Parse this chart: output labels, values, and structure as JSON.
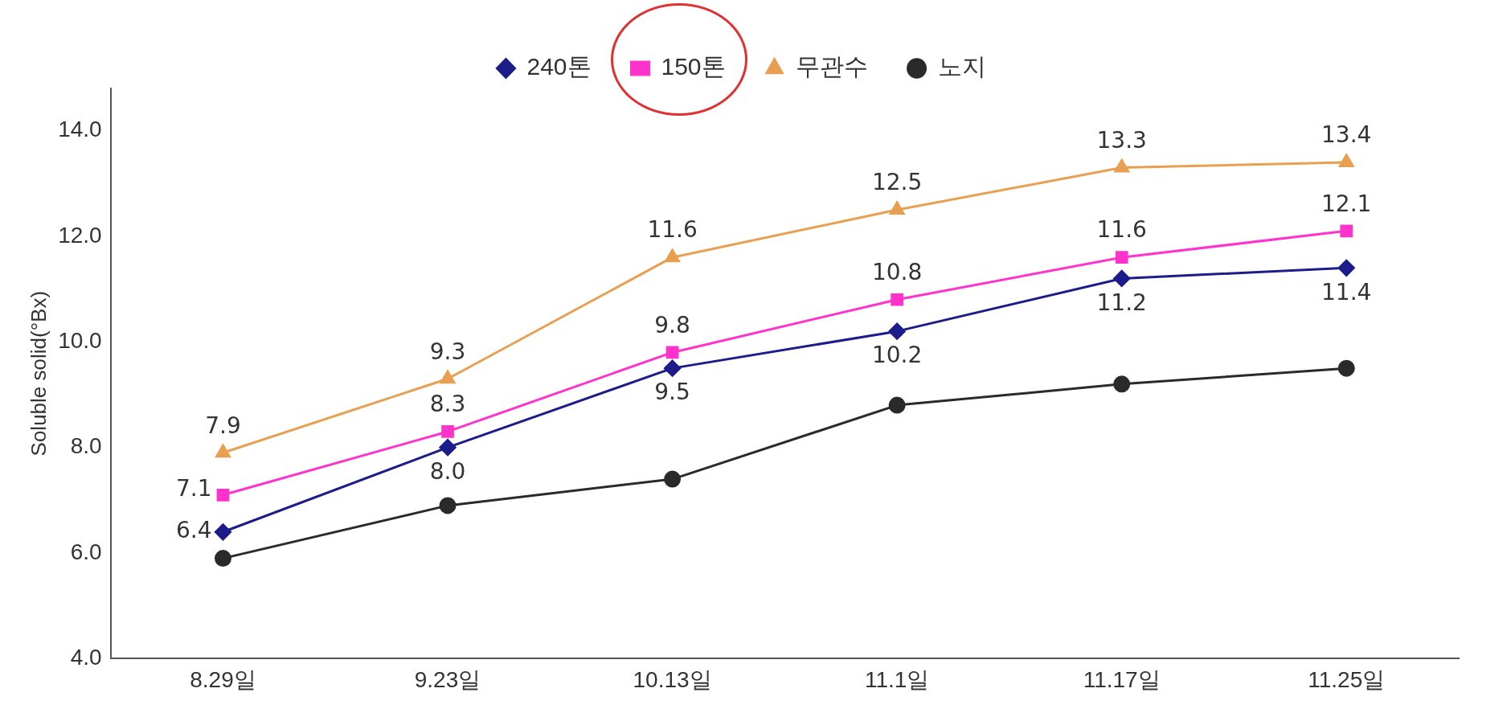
{
  "chart_data": {
    "type": "line",
    "ylabel": "Soluble solid(°Bx)",
    "categories": [
      "8.29일",
      "9.23일",
      "10.13일",
      "11.1일",
      "11.17일",
      "11.25일"
    ],
    "series": [
      {
        "name": "240톤",
        "color": "#1c1c8a",
        "marker": "diamond",
        "values": [
          6.4,
          8.0,
          9.5,
          10.2,
          11.2,
          11.4
        ],
        "value_labels": [
          "6.4",
          "8.0",
          "9.5",
          "10.2",
          "11.2",
          "11.4"
        ]
      },
      {
        "name": "150톤",
        "color": "#ff33cc",
        "marker": "square",
        "values": [
          7.1,
          8.3,
          9.8,
          10.8,
          11.6,
          12.1
        ],
        "value_labels": [
          "7.1",
          "8.3",
          "9.8",
          "10.8",
          "11.6",
          "12.1"
        ]
      },
      {
        "name": "무관수",
        "color": "#e8a050",
        "marker": "triangle",
        "values": [
          7.9,
          9.3,
          11.6,
          12.5,
          13.3,
          13.4
        ],
        "value_labels": [
          "7.9",
          "9.3",
          "11.6",
          "12.5",
          "13.3",
          "13.4"
        ]
      },
      {
        "name": "노지",
        "color": "#2a2a2a",
        "marker": "circle",
        "values": [
          5.9,
          6.9,
          7.4,
          8.8,
          9.2,
          9.5
        ]
      }
    ],
    "ylim": [
      4,
      14.8
    ],
    "yticks": [
      {
        "value": 4,
        "label": "4.0"
      },
      {
        "value": 6,
        "label": "6.0"
      },
      {
        "value": 8,
        "label": "8.0"
      },
      {
        "value": 10,
        "label": "10.0"
      },
      {
        "value": 12,
        "label": "12.0"
      },
      {
        "value": 14,
        "label": "14.0"
      }
    ],
    "grid": false,
    "legend": "top"
  }
}
